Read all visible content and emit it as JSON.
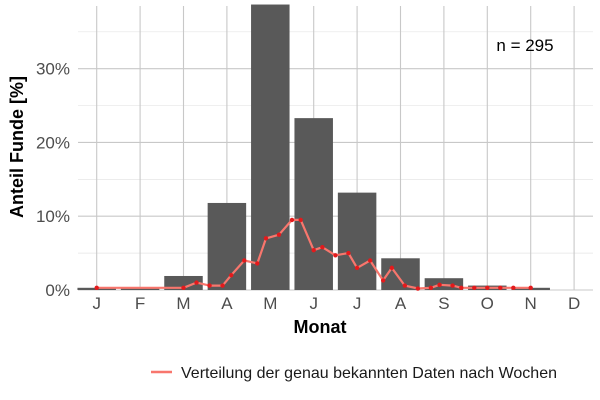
{
  "chart_data": {
    "type": "bar",
    "xlabel": "Monat",
    "ylabel": "Anteil Funde [%]",
    "annotation": "n = 295",
    "categories": [
      "J",
      "F",
      "M",
      "A",
      "M",
      "J",
      "J",
      "A",
      "S",
      "O",
      "N",
      "D"
    ],
    "y_ticks": [
      0,
      10,
      20,
      30
    ],
    "y_tick_labels": [
      "0%",
      "10%",
      "20%",
      "30%"
    ],
    "ylim": [
      0,
      38.5
    ],
    "grid": true,
    "legend_position": "bottom",
    "series": [
      {
        "type": "bar",
        "values": [
          0.3,
          0.3,
          1.9,
          11.8,
          38.7,
          23.3,
          13.2,
          4.3,
          1.6,
          0.6,
          0.3,
          0
        ]
      },
      {
        "type": "line",
        "name": "Verteilung der genau bekannten Daten nach Wochen",
        "color": "#f8766d",
        "x": [
          0.0,
          2.0,
          2.3,
          2.6,
          2.9,
          3.1,
          3.4,
          3.7,
          3.9,
          4.2,
          4.5,
          4.7,
          5.0,
          5.2,
          5.5,
          5.8,
          6.0,
          6.3,
          6.6,
          6.8,
          7.1,
          7.4,
          7.7,
          7.9,
          8.2,
          8.4,
          8.7,
          9.0,
          9.3,
          9.6,
          10.0
        ],
        "y": [
          0.3,
          0.3,
          1.0,
          0.6,
          0.6,
          2.0,
          4.0,
          3.6,
          7.0,
          7.5,
          9.5,
          9.5,
          5.4,
          5.8,
          4.7,
          5.0,
          3.0,
          4.0,
          1.3,
          3.0,
          0.6,
          0.2,
          0.3,
          0.7,
          0.6,
          0.3,
          0.3,
          0.3,
          0.3,
          0.3,
          0.3
        ]
      }
    ]
  }
}
